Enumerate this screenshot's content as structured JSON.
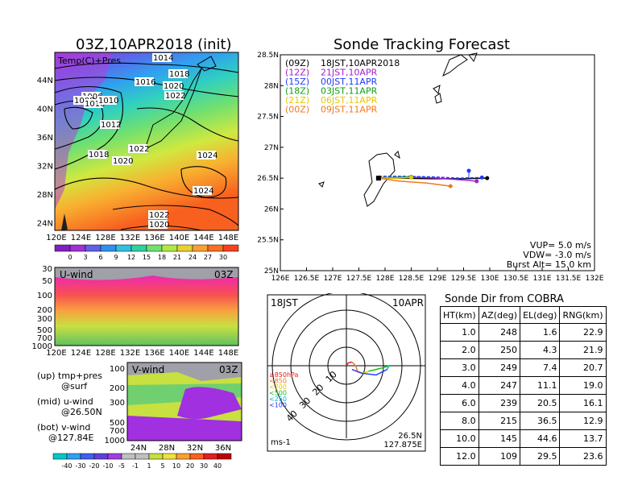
{
  "left": {
    "title": "03Z,10APR2018 (init)",
    "map_label": "Temp(C)+Pres",
    "lon_ticks": [
      "120E",
      "124E",
      "128E",
      "132E",
      "136E",
      "140E",
      "144E",
      "148E"
    ],
    "lat_ticks": [
      "44N",
      "40N",
      "36N",
      "32N",
      "28N",
      "24N"
    ],
    "isobar_labels": [
      "1014",
      "1018",
      "1020",
      "1016",
      "1006",
      "1008",
      "1010",
      "1010",
      "1022",
      "1012",
      "1022",
      "1018",
      "1020",
      "1024",
      "1024",
      "1022",
      "1020"
    ],
    "temp_colorbar": [
      "0",
      "3",
      "6",
      "9",
      "12",
      "15",
      "18",
      "21",
      "24",
      "27",
      "30"
    ],
    "uwind": {
      "label": "U-wind",
      "time": "03Z",
      "levels": [
        "30",
        "50",
        "100",
        "200",
        "300",
        "500",
        "700",
        "1000"
      ]
    },
    "vwind": {
      "label": "V-wind",
      "time": "03Z",
      "levels": [
        "100",
        "200",
        "300",
        "500",
        "700",
        "1000"
      ],
      "lat_ticks": [
        "24N",
        "28N",
        "32N",
        "36N"
      ]
    },
    "notes": [
      "(up) tmp+pres",
      "@surf",
      "(mid) u-wind",
      "@26.50N",
      "(bot) v-wind",
      "@127.84E"
    ],
    "wind_colorbar": [
      "-40",
      "-30",
      "-20",
      "-10",
      "-5",
      "-1",
      "1",
      "5",
      "10",
      "20",
      "30",
      "40"
    ]
  },
  "track": {
    "title": "Sonde Tracking Forecast",
    "lat_ticks": [
      "28.5N",
      "28N",
      "27.5N",
      "27N",
      "26.5N",
      "26N",
      "25.5N",
      "25N"
    ],
    "lon_ticks": [
      "126E",
      "126.5E",
      "127E",
      "127.5E",
      "128E",
      "128.5E",
      "129E",
      "129.5E",
      "130E",
      "130.5E",
      "131E",
      "131.5E",
      "132E"
    ],
    "legend": [
      {
        "code": "(09Z)",
        "text": "18JST,10APR2018",
        "color": "#000000"
      },
      {
        "code": "(12Z)",
        "text": "21JST,10APR",
        "color": "#a020c8"
      },
      {
        "code": "(15Z)",
        "text": "00JST,11APR",
        "color": "#1e3cff"
      },
      {
        "code": "(18Z)",
        "text": "03JST,11APR",
        "color": "#10a010"
      },
      {
        "code": "(21Z)",
        "text": "06JST,11APR",
        "color": "#e6c800"
      },
      {
        "code": "(00Z)",
        "text": "09JST,11APR",
        "color": "#f07820"
      }
    ],
    "params": [
      "VUP= 5.0 m/s",
      "VDW= -3.0 m/s",
      "Burst Alt= 15.0 km"
    ]
  },
  "hodo": {
    "time_left": "18JST",
    "time_right": "10APR",
    "level_legend": [
      {
        "text": "≥850hPa",
        "color": "#e02020"
      },
      {
        "text": "<850",
        "color": "#f07820"
      },
      {
        "text": "<700",
        "color": "#e6c800"
      },
      {
        "text": "<500",
        "color": "#10c010"
      },
      {
        "text": "<250",
        "color": "#00b4c8"
      },
      {
        "text": "<100",
        "color": "#1e3cff"
      }
    ],
    "ring_labels": [
      "10",
      "20",
      "30",
      "40"
    ],
    "unit": "ms-1",
    "loc_lat": "26.5N",
    "loc_lon": "127.875E"
  },
  "sonde": {
    "title": "Sonde Dir from COBRA",
    "headers": [
      "HT(km)",
      "AZ(deg)",
      "EL(deg)",
      "RNG(km)"
    ],
    "rows": [
      [
        "1.0",
        "248",
        "1.6",
        "22.9"
      ],
      [
        "2.0",
        "250",
        "4.3",
        "21.9"
      ],
      [
        "3.0",
        "249",
        "7.4",
        "20.7"
      ],
      [
        "4.0",
        "247",
        "11.1",
        "19.0"
      ],
      [
        "6.0",
        "239",
        "20.5",
        "16.1"
      ],
      [
        "8.0",
        "215",
        "36.5",
        "12.9"
      ],
      [
        "10.0",
        "145",
        "44.6",
        "13.7"
      ],
      [
        "12.0",
        "109",
        "29.5",
        "23.6"
      ]
    ]
  },
  "chart_data": [
    {
      "type": "heatmap",
      "title": "03Z,10APR2018 (init)",
      "field": "Temp(C)+Pres",
      "x_range": [
        "120E",
        "150E"
      ],
      "y_range": [
        "22N",
        "47N"
      ],
      "colorbar": [
        0,
        3,
        6,
        9,
        12,
        15,
        18,
        21,
        24,
        27,
        30
      ],
      "contour_labels": [
        1014,
        1018,
        1020,
        1016,
        1006,
        1008,
        1010,
        1010,
        1022,
        1012,
        1022,
        1018,
        1020,
        1024,
        1024,
        1022,
        1020
      ]
    },
    {
      "type": "heatmap",
      "field": "U-wind",
      "time": "03Z",
      "y_levels_hPa": [
        30,
        50,
        100,
        200,
        300,
        500,
        700,
        1000
      ],
      "x_range": [
        "120E",
        "150E"
      ]
    },
    {
      "type": "heatmap",
      "field": "V-wind",
      "time": "03Z",
      "y_levels_hPa": [
        100,
        200,
        300,
        500,
        700,
        1000
      ],
      "x_ticks": [
        "24N",
        "28N",
        "32N",
        "36N"
      ],
      "colorbar": [
        -40,
        -30,
        -20,
        -10,
        -5,
        -1,
        1,
        5,
        10,
        20,
        30,
        40
      ]
    },
    {
      "type": "line",
      "title": "Sonde Tracking Forecast",
      "xlim": [
        126,
        132
      ],
      "ylim": [
        25,
        28.5
      ],
      "series": [
        {
          "name": "(09Z) 18JST,10APR2018",
          "color": "#000000",
          "x": [
            127.875,
            128.3,
            128.9,
            129.5,
            129.95
          ],
          "y": [
            26.5,
            26.5,
            26.49,
            26.49,
            26.5
          ]
        },
        {
          "name": "(12Z) 21JST,10APR",
          "color": "#a020c8",
          "x": [
            127.875,
            128.4,
            129.0,
            129.5,
            129.75
          ],
          "y": [
            26.5,
            26.52,
            26.5,
            26.47,
            26.45
          ]
        },
        {
          "name": "(15Z) 00JST,11APR",
          "color": "#1e3cff",
          "x": [
            127.875,
            128.3,
            128.9,
            129.4,
            129.85
          ],
          "y": [
            26.53,
            26.53,
            26.52,
            26.5,
            26.51
          ]
        },
        {
          "name": "(18Z) 03JST,11APR",
          "color": "#10a010",
          "x": [
            127.875,
            128.2,
            128.5
          ],
          "y": [
            26.51,
            26.51,
            26.52
          ]
        },
        {
          "name": "(21Z) 06JST,11APR",
          "color": "#e6c800",
          "x": [
            127.875,
            128.2,
            128.5
          ],
          "y": [
            26.5,
            26.5,
            26.51
          ]
        },
        {
          "name": "(00Z) 09JST,11APR",
          "color": "#f07820",
          "x": [
            127.875,
            128.3,
            128.8,
            129.25
          ],
          "y": [
            26.5,
            26.45,
            26.42,
            26.37
          ]
        }
      ],
      "vertical_markers": [
        {
          "color": "#1e3cff",
          "x": 129.6,
          "y_bottom": 26.5,
          "y_top": 26.62
        }
      ],
      "labels": [
        "VUP= 5.0 m/s",
        "VDW= -3.0 m/s",
        "Burst Alt= 15.0 km"
      ]
    },
    {
      "type": "line",
      "subtype": "hodograph",
      "ring_labels": [
        10,
        20,
        30,
        40
      ],
      "unit": "ms-1",
      "series": [
        {
          "name": "≥850hPa",
          "color": "#e02020",
          "u": [
            0,
            1,
            3
          ],
          "v": [
            0,
            1.5,
            2
          ]
        },
        {
          "name": "<850",
          "color": "#f07820",
          "u": [
            3,
            5,
            6
          ],
          "v": [
            2,
            0,
            -3
          ]
        },
        {
          "name": "<700",
          "color": "#e6c800",
          "u": [
            6,
            9,
            12
          ],
          "v": [
            -3,
            -4,
            -3
          ]
        },
        {
          "name": "<500",
          "color": "#10c010",
          "u": [
            12,
            16,
            20,
            23
          ],
          "v": [
            -3,
            -2,
            -1,
            0
          ]
        },
        {
          "name": "<250",
          "color": "#00b4c8",
          "u": [
            23,
            22
          ],
          "v": [
            0,
            -2
          ]
        },
        {
          "name": "<100",
          "color": "#1e3cff",
          "u": [
            22,
            16,
            8,
            3
          ],
          "v": [
            -2,
            -5,
            -4,
            -2
          ]
        }
      ]
    }
  ]
}
